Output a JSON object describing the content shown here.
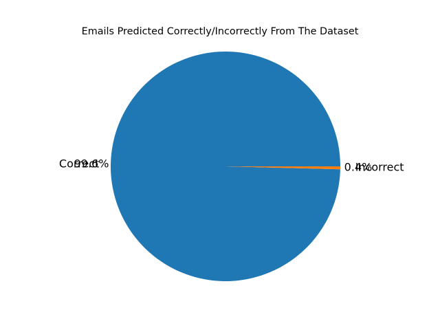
{
  "chart_data": {
    "type": "pie",
    "title": "Emails Predicted Correctly/Incorrectly From The Dataset",
    "slices": [
      {
        "label": "Correct",
        "percent": 99.6,
        "percent_label": "99.6%",
        "color": "#1f77b4"
      },
      {
        "label": "Incorrect",
        "percent": 0.4,
        "percent_label": "0.4%",
        "color": "#ff7f0e"
      }
    ],
    "start_angle_deg": 0,
    "direction": "counterclockwise",
    "legend": "none"
  }
}
